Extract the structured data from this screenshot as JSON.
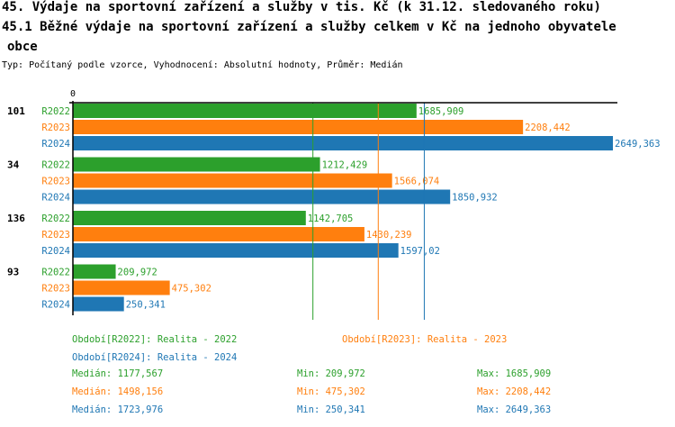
{
  "title1": "45. Výdaje na sportovní zařízení a služby v tis. Kč (k 31.12. sledovaného roku)",
  "title2": "45.1 Běžné výdaje na sportovní zařízení a služby celkem v Kč na jednoho obyvatele",
  "title3": "obce",
  "subtitle": "Typ: Počítaný podle vzorce, Vyhodnocení: Absolutní hodnoty, Průměr: Medián",
  "colors": {
    "R2022": "#2ca02c",
    "R2023": "#ff7f0e",
    "R2024": "#1f77b4"
  },
  "chart_data": {
    "type": "bar",
    "orientation": "horizontal",
    "x_tick_labels": [
      "0"
    ],
    "xlim": [
      0,
      2649.363
    ],
    "categories": [
      "101",
      "34",
      "136",
      "93"
    ],
    "series": [
      {
        "name": "R2022",
        "values": [
          1685.909,
          1212.429,
          1142.705,
          209.972
        ],
        "labels": [
          "1685,909",
          "1212,429",
          "1142,705",
          "209,972"
        ]
      },
      {
        "name": "R2023",
        "values": [
          2208.442,
          1566.074,
          1430.239,
          475.302
        ],
        "labels": [
          "2208,442",
          "1566,074",
          "1430,239",
          "475,302"
        ]
      },
      {
        "name": "R2024",
        "values": [
          2649.363,
          1850.932,
          1597.02,
          250.341
        ],
        "labels": [
          "2649,363",
          "1850,932",
          "1597,02",
          "250,341"
        ]
      }
    ],
    "median_lines": [
      1177.567,
      1498.156,
      1723.976
    ]
  },
  "legend": [
    {
      "label": "Období[R2022]: Realita - 2022"
    },
    {
      "label": "Období[R2023]: Realita - 2023"
    },
    {
      "label": "Období[R2024]: Realita - 2024"
    }
  ],
  "stats": [
    {
      "median": "Medián: 1177,567",
      "min": "Min: 209,972",
      "max": "Max: 1685,909"
    },
    {
      "median": "Medián: 1498,156",
      "min": "Min: 475,302",
      "max": "Max: 2208,442"
    },
    {
      "median": "Medián: 1723,976",
      "min": "Min: 250,341",
      "max": "Max: 2649,363"
    }
  ]
}
